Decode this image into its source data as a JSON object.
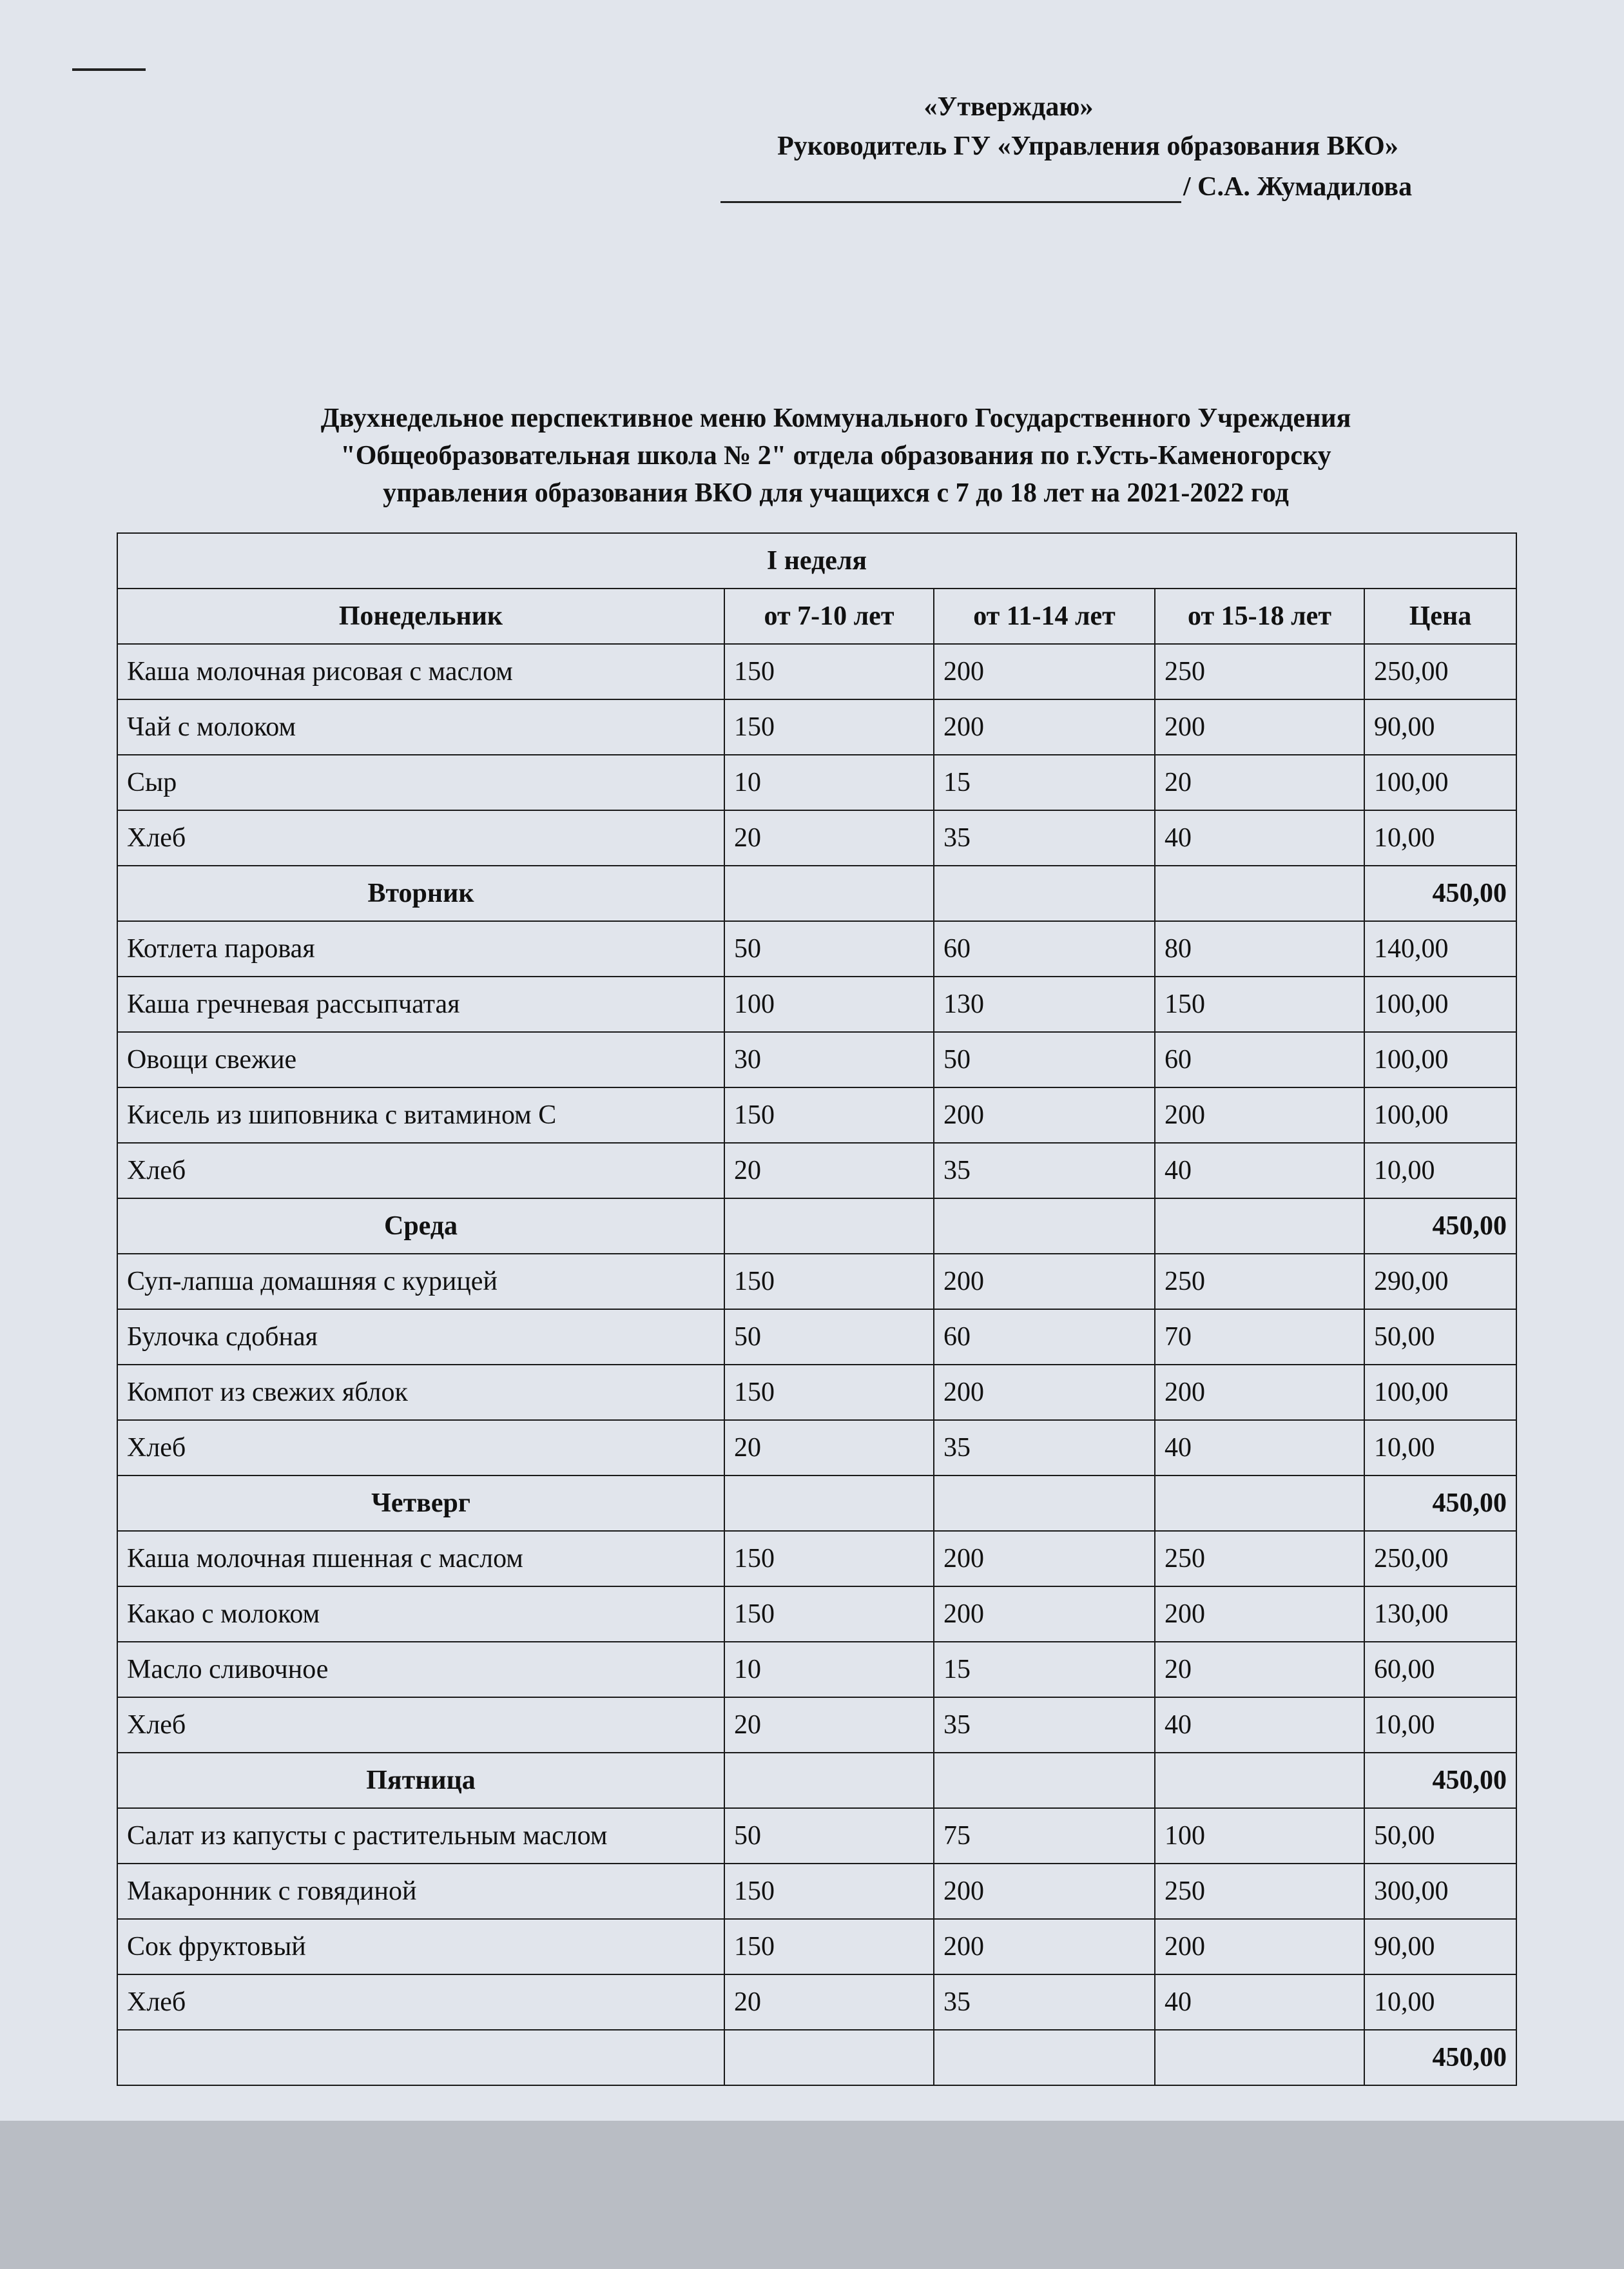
{
  "approval": {
    "line1": "«Утверждаю»",
    "line2": "Руководитель ГУ «Управления образования ВКО»",
    "signatory": "/ С.А. Жумадилова"
  },
  "title": {
    "line1": "Двухнедельное перспективное меню Коммунального Государственного Учреждения",
    "line2": "\"Общеобразовательная школа № 2\" отдела образования по г.Усть-Каменогорску",
    "line3": "управления образования ВКО для учащихся с 7 до 18 лет на 2021-2022 год"
  },
  "table": {
    "week": "I неделя",
    "header": [
      "Понедельник",
      "от 7-10 лет",
      "от 11-14 лет",
      "от 15-18 лет",
      "Цена"
    ],
    "rows": [
      [
        "Каша молочная рисовая с маслом",
        "150",
        "200",
        "250",
        "250,00"
      ],
      [
        "Чай с молоком",
        "150",
        "200",
        "200",
        "90,00"
      ],
      [
        "Сыр",
        "10",
        "15",
        "20",
        "100,00"
      ],
      [
        "Хлеб",
        "20",
        "35",
        "40",
        "10,00"
      ],
      {
        "day": "Вторник",
        "total": "450,00"
      },
      [
        "Котлета паровая",
        "50",
        "60",
        "80",
        "140,00"
      ],
      [
        "Каша гречневая рассыпчатая",
        "100",
        "130",
        "150",
        "100,00"
      ],
      [
        "Овощи свежие",
        "30",
        "50",
        "60",
        "100,00"
      ],
      [
        "Кисель из шиповника с витамином С",
        "150",
        "200",
        "200",
        "100,00"
      ],
      [
        "Хлеб",
        "20",
        "35",
        "40",
        "10,00"
      ],
      {
        "day": "Среда",
        "total": "450,00"
      },
      [
        "Суп-лапша домашняя с курицей",
        "150",
        "200",
        "250",
        "290,00"
      ],
      [
        "Булочка сдобная",
        "50",
        "60",
        "70",
        "50,00"
      ],
      [
        "Компот из свежих яблок",
        "150",
        "200",
        "200",
        "100,00"
      ],
      [
        "Хлеб",
        "20",
        "35",
        "40",
        "10,00"
      ],
      {
        "day": "Четверг",
        "total": "450,00"
      },
      [
        "Каша молочная пшенная с маслом",
        "150",
        "200",
        "250",
        "250,00"
      ],
      [
        "Какао с молоком",
        "150",
        "200",
        "200",
        "130,00"
      ],
      [
        "Масло сливочное",
        "10",
        "15",
        "20",
        "60,00"
      ],
      [
        "Хлеб",
        "20",
        "35",
        "40",
        "10,00"
      ],
      {
        "day": "Пятница",
        "total": "450,00"
      },
      [
        "Салат из капусты с растительным маслом",
        "50",
        "75",
        "100",
        "50,00"
      ],
      [
        "Макаронник с говядиной",
        "150",
        "200",
        "250",
        "300,00"
      ],
      [
        "Сок фруктовый",
        "150",
        "200",
        "200",
        "90,00"
      ],
      [
        "Хлеб",
        "20",
        "35",
        "40",
        "10,00"
      ],
      {
        "total": "450,00"
      }
    ]
  }
}
